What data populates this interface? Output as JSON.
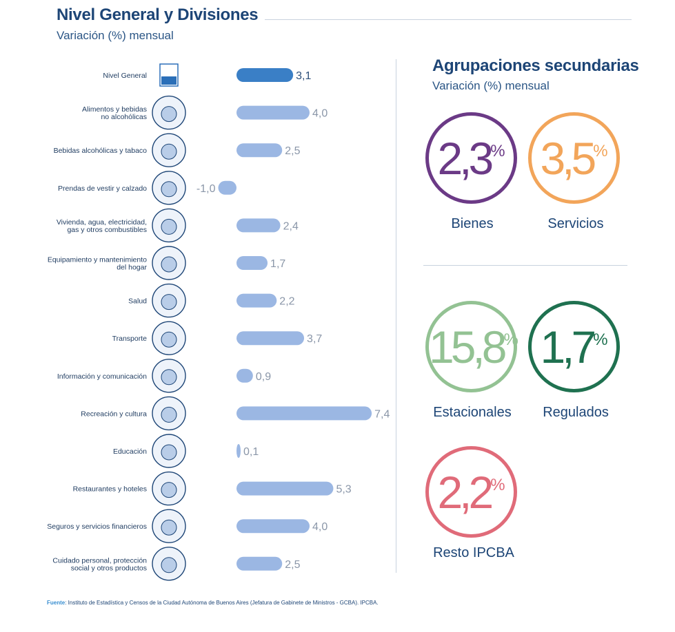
{
  "header": {
    "title": "Nivel General y Divisiones",
    "subtitle": "Variación (%) mensual"
  },
  "chart_data": {
    "type": "bar",
    "orientation": "horizontal",
    "categories": [
      "Nivel General",
      "Alimentos y bebidas\nno alcohólicas",
      "Bebidas alcohólicas y tabaco",
      "Prendas de vestir y calzado",
      "Vivienda, agua, electricidad,\ngas y otros combustibles",
      "Equipamiento y mantenimiento\ndel hogar",
      "Salud",
      "Transporte",
      "Información y comunicación",
      "Recreación y cultura",
      "Educación",
      "Restaurantes y hoteles",
      "Seguros y servicios financieros",
      "Cuidado personal, protección\nsocial y otros productos"
    ],
    "values": [
      3.1,
      4.0,
      2.5,
      -1.0,
      2.4,
      1.7,
      2.2,
      3.7,
      0.9,
      7.4,
      0.1,
      5.3,
      4.0,
      2.5
    ],
    "value_labels": [
      "3,1",
      "4,0",
      "2,5",
      "-1,0",
      "2,4",
      "1,7",
      "2,2",
      "3,7",
      "0,9",
      "7,4",
      "0,1",
      "5,3",
      "4,0",
      "2,5"
    ],
    "icons": [
      "ipcba-logo-icon",
      "food-basket-icon",
      "wine-bottle-icon",
      "clothing-icon",
      "house-icon",
      "washing-machine-icon",
      "doctor-icon",
      "airplane-car-icon",
      "laptop-icon",
      "theater-popcorn-icon",
      "school-building-icon",
      "serving-cloche-icon",
      "bank-icon",
      "personal-care-icon"
    ],
    "highlight_index": 0,
    "colors": {
      "highlight": "#3a7fc6",
      "bar": "#9bb7e3",
      "label_highlight": "#2d4f7a",
      "label": "#8a96a8"
    }
  },
  "secondary": {
    "title": "Agrupaciones secundarias",
    "subtitle": "Variación (%) mensual",
    "percent_sign": "%",
    "items": [
      {
        "value": "2,3",
        "label": "Bienes",
        "color": "#6b3a86"
      },
      {
        "value": "3,5",
        "label": "Servicios",
        "color": "#f2a55a"
      },
      {
        "value": "15,8",
        "label": "Estacionales",
        "color": "#93c293"
      },
      {
        "value": "1,7",
        "label": "Regulados",
        "color": "#1f7150"
      },
      {
        "value": "2,2",
        "label": "Resto IPCBA",
        "color": "#e06b79"
      }
    ]
  },
  "footer": {
    "source_label": "Fuente",
    "source_text": ": Instituto de Estadística y Censos de la Ciudad Autónoma de Buenos Aires (Jefatura de Gabinete de Ministros - GCBA). IPCBA."
  }
}
